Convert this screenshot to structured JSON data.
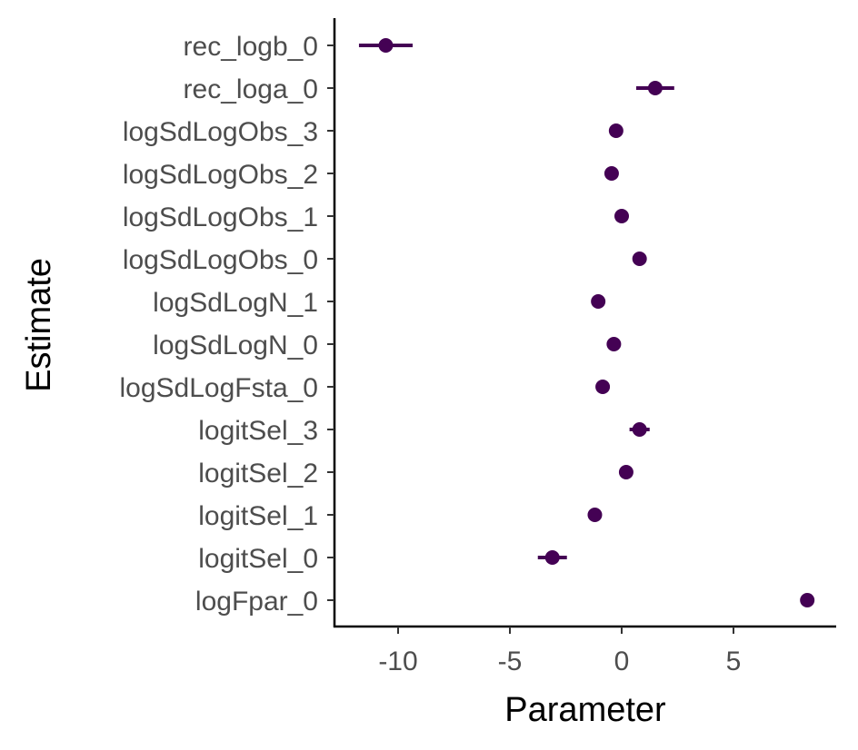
{
  "chart_data": {
    "type": "scatter",
    "subtype": "point-range",
    "title": "",
    "xlabel": "Parameter",
    "ylabel": "Estimate",
    "xlim": [
      -12.65,
      9.65
    ],
    "x_ticks": [
      -10,
      -5,
      0,
      5
    ],
    "x_tick_labels": [
      "-10",
      "-5",
      "0",
      "5"
    ],
    "grid": false,
    "legend": "none",
    "point_color": "#440154",
    "categories": [
      "rec_logb_0",
      "rec_loga_0",
      "logSdLogObs_3",
      "logSdLogObs_2",
      "logSdLogObs_1",
      "logSdLogObs_0",
      "logSdLogN_1",
      "logSdLogN_0",
      "logSdLogFsta_0",
      "logitSel_3",
      "logitSel_2",
      "logitSel_1",
      "logitSel_0",
      "logFpar_0"
    ],
    "values": [
      -10.55,
      1.5,
      -0.25,
      -0.45,
      0.0,
      0.8,
      -1.05,
      -0.35,
      -0.85,
      0.8,
      0.2,
      -1.2,
      -3.1,
      8.3
    ],
    "lower": [
      -11.75,
      0.65,
      -0.4,
      -0.55,
      -0.1,
      0.7,
      -1.15,
      -0.45,
      -0.95,
      0.35,
      0.05,
      -1.35,
      -3.75,
      8.2
    ],
    "upper": [
      -9.35,
      2.35,
      -0.1,
      -0.35,
      0.1,
      0.9,
      -0.95,
      -0.25,
      -0.75,
      1.25,
      0.35,
      -1.05,
      -2.45,
      8.4
    ]
  }
}
